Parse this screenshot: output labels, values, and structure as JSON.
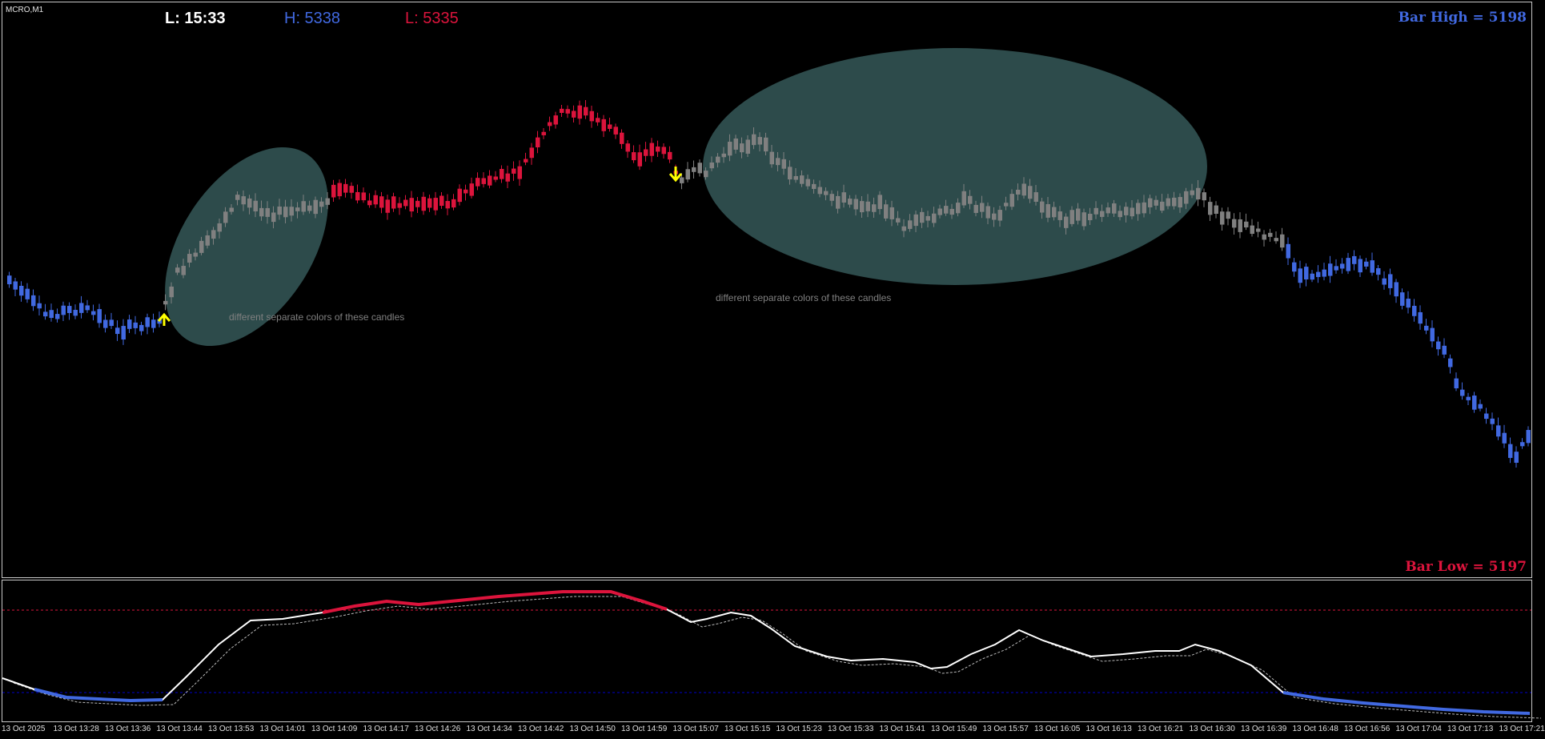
{
  "symbol_label": "MCRO,M1",
  "hud": {
    "clock": "L: 15:33",
    "high": "H: 5338",
    "low": "L: 5335"
  },
  "bar_high_label": "Bar High = 5198",
  "bar_low_label": "Bar Low = 5197",
  "annotations": [
    "different separate colors of these candles",
    "different separate colors of these candles"
  ],
  "time_axis": [
    "13 Oct 2025",
    "13 Oct 13:28",
    "13 Oct 13:36",
    "13 Oct 13:44",
    "13 Oct 13:53",
    "13 Oct 14:01",
    "13 Oct 14:09",
    "13 Oct 14:17",
    "13 Oct 14:26",
    "13 Oct 14:34",
    "13 Oct 14:42",
    "13 Oct 14:50",
    "13 Oct 14:59",
    "13 Oct 15:07",
    "13 Oct 15:15",
    "13 Oct 15:23",
    "13 Oct 15:33",
    "13 Oct 15:41",
    "13 Oct 15:49",
    "13 Oct 15:57",
    "13 Oct 16:05",
    "13 Oct 16:13",
    "13 Oct 16:21",
    "13 Oct 16:30",
    "13 Oct 16:39",
    "13 Oct 16:48",
    "13 Oct 16:56",
    "13 Oct 17:04",
    "13 Oct 17:13",
    "13 Oct 17:21"
  ],
  "colors": {
    "up_trend": "#4169e1",
    "down_trend": "#dc143c",
    "neutral": "#808080",
    "signal_arrow": "#ffff00",
    "highlight": "#2f4f4f",
    "signal_line": "#ffffff",
    "level_upper": "#dc143c",
    "level_lower": "#0000cd"
  }
}
